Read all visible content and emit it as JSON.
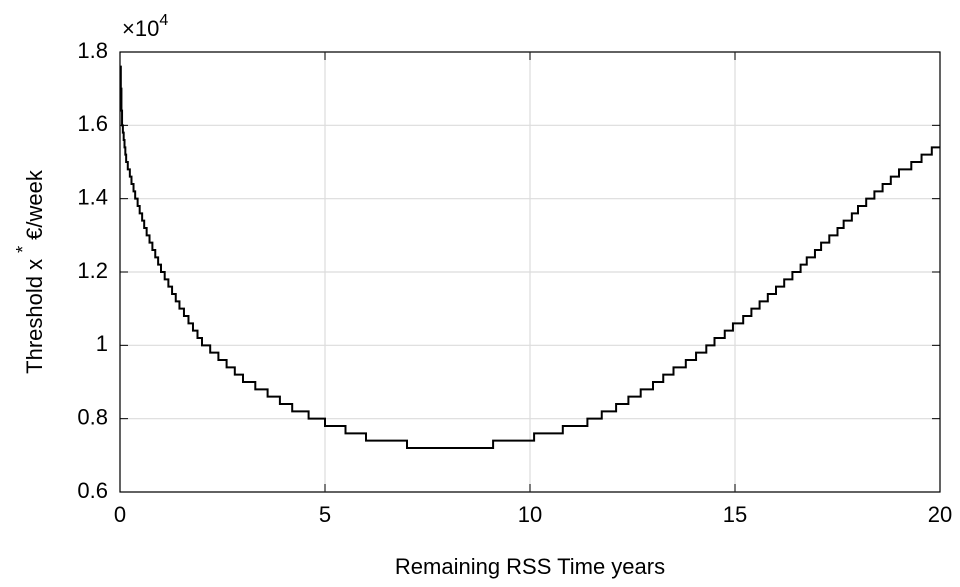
{
  "chart_data": {
    "type": "step",
    "xlabel": "Remaining RSS Time years",
    "ylabel": [
      "Threshold x",
      "*",
      "€/week"
    ],
    "y_multiplier": {
      "base": "×10",
      "exponent": "4"
    },
    "xlim": [
      0,
      20
    ],
    "ylim": [
      0.6,
      1.8
    ],
    "xticks": [
      0,
      5,
      10,
      15,
      20
    ],
    "yticks": [
      0.6,
      0.8,
      1,
      1.2,
      1.4,
      1.6,
      1.8
    ],
    "grid": true,
    "color": "#000000",
    "x": [
      0,
      0.02,
      0.035,
      0.05,
      0.07,
      0.09,
      0.11,
      0.13,
      0.15,
      0.19,
      0.24,
      0.28,
      0.33,
      0.37,
      0.43,
      0.48,
      0.54,
      0.59,
      0.65,
      0.72,
      0.79,
      0.86,
      0.93,
      1.0,
      1.09,
      1.18,
      1.27,
      1.36,
      1.45,
      1.56,
      1.67,
      1.78,
      1.89,
      2.0,
      2.2,
      2.4,
      2.6,
      2.8,
      3.0,
      3.3,
      3.6,
      3.9,
      4.2,
      4.6,
      5.0,
      5.5,
      6.0,
      7.0,
      9.1,
      10.1,
      10.8,
      11.4,
      11.75,
      12.1,
      12.4,
      12.7,
      13.0,
      13.25,
      13.5,
      13.8,
      14.05,
      14.3,
      14.5,
      14.75,
      14.95,
      15.2,
      15.4,
      15.6,
      15.8,
      16.0,
      16.2,
      16.4,
      16.6,
      16.75,
      16.95,
      17.1,
      17.3,
      17.5,
      17.65,
      17.85,
      18.0,
      18.2,
      18.4,
      18.6,
      18.8,
      19.0,
      19.3,
      19.55,
      19.8,
      20
    ],
    "values": [
      1.76,
      1.7,
      1.64,
      1.6,
      1.58,
      1.56,
      1.54,
      1.52,
      1.5,
      1.48,
      1.46,
      1.44,
      1.42,
      1.4,
      1.38,
      1.36,
      1.34,
      1.32,
      1.3,
      1.28,
      1.26,
      1.24,
      1.22,
      1.2,
      1.18,
      1.16,
      1.14,
      1.12,
      1.1,
      1.08,
      1.06,
      1.04,
      1.02,
      1.0,
      0.98,
      0.96,
      0.94,
      0.92,
      0.9,
      0.88,
      0.86,
      0.84,
      0.82,
      0.8,
      0.78,
      0.76,
      0.74,
      0.72,
      0.74,
      0.76,
      0.78,
      0.8,
      0.82,
      0.84,
      0.86,
      0.88,
      0.9,
      0.92,
      0.94,
      0.96,
      0.98,
      1.0,
      1.02,
      1.04,
      1.06,
      1.08,
      1.1,
      1.12,
      1.14,
      1.16,
      1.18,
      1.2,
      1.22,
      1.24,
      1.26,
      1.28,
      1.3,
      1.32,
      1.34,
      1.36,
      1.38,
      1.4,
      1.42,
      1.44,
      1.46,
      1.48,
      1.5,
      1.52,
      1.54,
      1.54
    ]
  }
}
